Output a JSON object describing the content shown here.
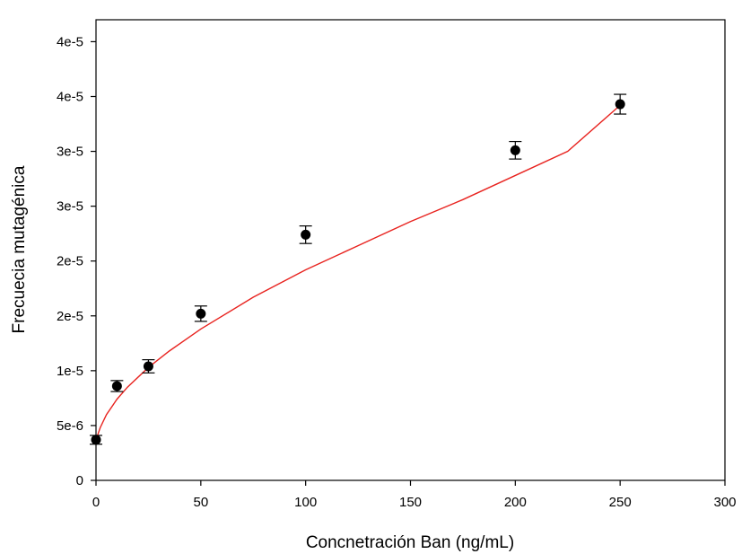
{
  "chart_data": {
    "type": "scatter",
    "title": "",
    "xlabel": "Concnetración Ban (ng/mL)",
    "ylabel": "Frecuecia mutagénica",
    "xlim": [
      0,
      300
    ],
    "ylim": [
      0,
      4.2e-05
    ],
    "x_ticks": [
      {
        "value": 0,
        "label": "0"
      },
      {
        "value": 50,
        "label": "50"
      },
      {
        "value": 100,
        "label": "100"
      },
      {
        "value": 150,
        "label": "150"
      },
      {
        "value": 200,
        "label": "200"
      },
      {
        "value": 250,
        "label": "250"
      },
      {
        "value": 300,
        "label": "300"
      }
    ],
    "y_ticks": [
      {
        "value": 0,
        "label": "0"
      },
      {
        "value": 5e-06,
        "label": "5e-6"
      },
      {
        "value": 1e-05,
        "label": "1e-5"
      },
      {
        "value": 1.5e-05,
        "label": "2e-5"
      },
      {
        "value": 2e-05,
        "label": "2e-5"
      },
      {
        "value": 2.5e-05,
        "label": "3e-5"
      },
      {
        "value": 3e-05,
        "label": "3e-5"
      },
      {
        "value": 3.5e-05,
        "label": "4e-5"
      },
      {
        "value": 4e-05,
        "label": "4e-5"
      }
    ],
    "grid": false,
    "legend": "none",
    "points": [
      {
        "x": 0,
        "y": 3.7e-06,
        "err": 4e-07
      },
      {
        "x": 10,
        "y": 8.6e-06,
        "err": 5e-07
      },
      {
        "x": 25,
        "y": 1.04e-05,
        "err": 6e-07
      },
      {
        "x": 50,
        "y": 1.52e-05,
        "err": 7e-07
      },
      {
        "x": 100,
        "y": 2.24e-05,
        "err": 8e-07
      },
      {
        "x": 200,
        "y": 3.01e-05,
        "err": 8e-07
      },
      {
        "x": 250,
        "y": 3.43e-05,
        "err": 9e-07
      }
    ],
    "fit_curve": {
      "x": [
        0,
        2,
        5,
        10,
        15,
        25,
        35,
        50,
        75,
        100,
        125,
        150,
        175,
        200,
        225,
        250
      ],
      "y": [
        3.7e-06,
        4.8e-06,
        6e-06,
        7.4e-06,
        8.5e-06,
        1.03e-05,
        1.18e-05,
        1.38e-05,
        1.67e-05,
        1.92e-05,
        2.14e-05,
        2.36e-05,
        2.56e-05,
        2.78e-05,
        3e-05,
        3.42e-05
      ]
    },
    "marker_color": "#000000",
    "curve_color": "#e8231f"
  }
}
